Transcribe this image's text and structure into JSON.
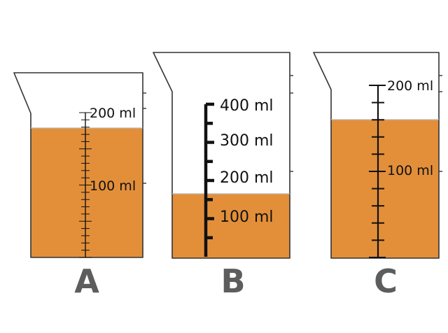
{
  "colors": {
    "liquid": "#e38f3a",
    "outline": "#333333",
    "scale": "#111111",
    "letter": "#5d5d5d"
  },
  "cylinders": [
    {
      "letter": "A",
      "scale_labels": [
        "200 ml",
        "100 ml"
      ],
      "scale_max_ml": 200,
      "fill_ml": 190
    },
    {
      "letter": "B",
      "scale_labels": [
        "400 ml",
        "300 ml",
        "200 ml",
        "100 ml"
      ],
      "scale_max_ml": 400,
      "fill_ml": 122
    },
    {
      "letter": "C",
      "scale_labels": [
        "200 ml",
        "100 ml"
      ],
      "scale_max_ml": 200,
      "fill_ml": 160
    }
  ]
}
